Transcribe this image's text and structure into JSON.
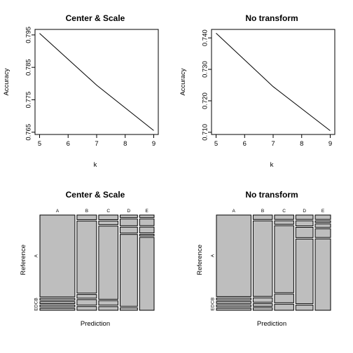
{
  "chart_data": [
    {
      "type": "line",
      "title": "Center & Scale",
      "xlabel": "k",
      "ylabel": "Accuracy",
      "x": [
        5,
        7,
        9
      ],
      "y": [
        0.7955,
        0.7795,
        0.7655
      ],
      "xticks": [
        "5",
        "6",
        "7",
        "8",
        "9"
      ],
      "yticks": [
        "0.765",
        "0.775",
        "0.785",
        "0.795"
      ],
      "xlim": [
        4.84,
        9.16
      ],
      "ylim": [
        0.7643,
        0.7967
      ],
      "grid": false
    },
    {
      "type": "line",
      "title": "No transform",
      "xlabel": "k",
      "ylabel": "Accuracy",
      "x": [
        5,
        7,
        9
      ],
      "y": [
        0.7415,
        0.7245,
        0.7105
      ],
      "xticks": [
        "5",
        "6",
        "7",
        "8",
        "9"
      ],
      "yticks": [
        "0.710",
        "0.720",
        "0.730",
        "0.740"
      ],
      "xlim": [
        4.84,
        9.16
      ],
      "ylim": [
        0.7093,
        0.7427
      ],
      "grid": false
    },
    {
      "type": "mosaic",
      "title": "Center & Scale",
      "xlabel": "Prediction",
      "ylabel": "Reference",
      "columns": [
        "A",
        "B",
        "C",
        "D",
        "E"
      ],
      "rows": [
        "A",
        "B",
        "C",
        "D",
        "E"
      ],
      "column_shares": [
        0.362,
        0.203,
        0.2,
        0.18,
        0.15
      ],
      "cells": [
        [
          0.84,
          0.05,
          0.05,
          0.03,
          0.03
        ],
        [
          0.02,
          0.78,
          0.04,
          0.08,
          0.08
        ],
        [
          0.02,
          0.04,
          0.8,
          0.07,
          0.07
        ],
        [
          0.02,
          0.06,
          0.05,
          0.85,
          0.02
        ],
        [
          0.02,
          0.04,
          0.04,
          0.03,
          0.87
        ]
      ]
    },
    {
      "type": "mosaic",
      "title": "No transform",
      "xlabel": "Prediction",
      "ylabel": "Reference",
      "columns": [
        "A",
        "B",
        "C",
        "D",
        "E"
      ],
      "rows": [
        "A",
        "B",
        "C",
        "D",
        "E"
      ],
      "column_shares": [
        0.36,
        0.2,
        0.2,
        0.18,
        0.16
      ],
      "cells": [
        [
          0.8,
          0.05,
          0.05,
          0.05,
          0.05
        ],
        [
          0.02,
          0.86,
          0.04,
          0.06,
          0.02
        ],
        [
          0.02,
          0.05,
          0.77,
          0.12,
          0.04
        ],
        [
          0.02,
          0.03,
          0.1,
          0.75,
          0.1
        ],
        [
          0.02,
          0.03,
          0.07,
          0.06,
          0.82
        ]
      ]
    }
  ]
}
